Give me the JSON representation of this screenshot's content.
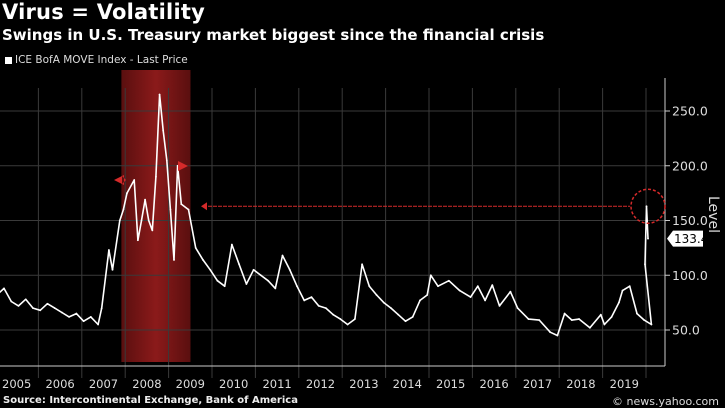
{
  "header": {
    "title": "Virus = Volatility",
    "subtitle": "Swings in U.S. Treasury market biggest since the financial crisis"
  },
  "footer": {
    "source": "Source: Intercontinental Exchange, Bank of America",
    "credit": "© news.yahoo.com"
  },
  "chart_data": {
    "type": "line",
    "title": "Virus = Volatility",
    "subtitle": "Swings in U.S. Treasury market biggest since the financial crisis",
    "ylabel": "Level",
    "xlabel": "",
    "ylim": [
      30,
      280
    ],
    "yticks": [
      "50.0",
      "100.0",
      "150.0",
      "200.0",
      "250.0"
    ],
    "xticks": [
      "2005",
      "2006",
      "2007",
      "2008",
      "2009",
      "2010",
      "2011",
      "2012",
      "2013",
      "2014",
      "2015",
      "2016",
      "2017",
      "2018",
      "2019"
    ],
    "grid": true,
    "legend_position": "top-left",
    "colors": {
      "line": "#ffffff",
      "shade": "#8b1a1a",
      "annotation": "#d42a2a",
      "background": "#000000"
    },
    "last_price_label": "133.4",
    "shaded_region": {
      "start": "2007-12",
      "end": "2009-06"
    },
    "annotation_level": 163,
    "series": [
      {
        "name": "ICE BofA MOVE Index - Last Price",
        "points": [
          [
            "2005-01",
            82
          ],
          [
            "2005-03",
            88
          ],
          [
            "2005-05",
            76
          ],
          [
            "2005-07",
            72
          ],
          [
            "2005-09",
            78
          ],
          [
            "2005-11",
            70
          ],
          [
            "2006-01",
            68
          ],
          [
            "2006-03",
            74
          ],
          [
            "2006-05",
            70
          ],
          [
            "2006-07",
            66
          ],
          [
            "2006-09",
            62
          ],
          [
            "2006-11",
            65
          ],
          [
            "2007-01",
            58
          ],
          [
            "2007-03",
            62
          ],
          [
            "2007-05",
            55
          ],
          [
            "2007-06",
            70
          ],
          [
            "2007-08",
            123
          ],
          [
            "2007-09",
            105
          ],
          [
            "2007-11",
            150
          ],
          [
            "2007-12",
            160
          ],
          [
            "2008-01",
            175
          ],
          [
            "2008-03",
            187
          ],
          [
            "2008-04",
            132
          ],
          [
            "2008-05",
            150
          ],
          [
            "2008-06",
            169
          ],
          [
            "2008-07",
            150
          ],
          [
            "2008-08",
            141
          ],
          [
            "2008-09",
            190
          ],
          [
            "2008-10",
            265
          ],
          [
            "2008-11",
            232
          ],
          [
            "2008-12",
            205
          ],
          [
            "2009-01",
            160
          ],
          [
            "2009-02",
            114
          ],
          [
            "2009-03",
            200
          ],
          [
            "2009-04",
            165
          ],
          [
            "2009-06",
            160
          ],
          [
            "2009-08",
            125
          ],
          [
            "2009-10",
            114
          ],
          [
            "2009-12",
            105
          ],
          [
            "2010-02",
            95
          ],
          [
            "2010-04",
            90
          ],
          [
            "2010-06",
            128
          ],
          [
            "2010-08",
            110
          ],
          [
            "2010-10",
            92
          ],
          [
            "2010-12",
            105
          ],
          [
            "2011-02",
            100
          ],
          [
            "2011-04",
            95
          ],
          [
            "2011-06",
            88
          ],
          [
            "2011-08",
            118
          ],
          [
            "2011-10",
            105
          ],
          [
            "2011-12",
            90
          ],
          [
            "2012-02",
            77
          ],
          [
            "2012-04",
            80
          ],
          [
            "2012-06",
            72
          ],
          [
            "2012-08",
            70
          ],
          [
            "2012-10",
            64
          ],
          [
            "2012-12",
            60
          ],
          [
            "2013-02",
            55
          ],
          [
            "2013-04",
            60
          ],
          [
            "2013-06",
            110
          ],
          [
            "2013-08",
            90
          ],
          [
            "2013-10",
            82
          ],
          [
            "2013-12",
            75
          ],
          [
            "2014-02",
            70
          ],
          [
            "2014-04",
            64
          ],
          [
            "2014-06",
            58
          ],
          [
            "2014-08",
            62
          ],
          [
            "2014-10",
            77
          ],
          [
            "2014-12",
            82
          ],
          [
            "2015-01",
            100
          ],
          [
            "2015-03",
            90
          ],
          [
            "2015-06",
            95
          ],
          [
            "2015-09",
            86
          ],
          [
            "2015-12",
            80
          ],
          [
            "2016-02",
            90
          ],
          [
            "2016-04",
            77
          ],
          [
            "2016-06",
            91
          ],
          [
            "2016-08",
            72
          ],
          [
            "2016-11",
            85
          ],
          [
            "2017-01",
            70
          ],
          [
            "2017-04",
            60
          ],
          [
            "2017-07",
            59
          ],
          [
            "2017-10",
            48
          ],
          [
            "2017-12",
            45
          ],
          [
            "2018-02",
            65
          ],
          [
            "2018-04",
            59
          ],
          [
            "2018-06",
            60
          ],
          [
            "2018-09",
            52
          ],
          [
            "2018-12",
            64
          ],
          [
            "2019-01",
            55
          ],
          [
            "2019-03",
            62
          ],
          [
            "2019-05",
            75
          ],
          [
            "2019-06",
            86
          ],
          [
            "2019-08",
            90
          ],
          [
            "2019-10",
            65
          ],
          [
            "2019-12",
            59
          ],
          [
            "2020-02",
            55
          ],
          [
            "2020-03",
            110
          ],
          [
            "2020-03",
            163
          ],
          [
            "2020-03",
            133.4
          ]
        ]
      }
    ]
  }
}
